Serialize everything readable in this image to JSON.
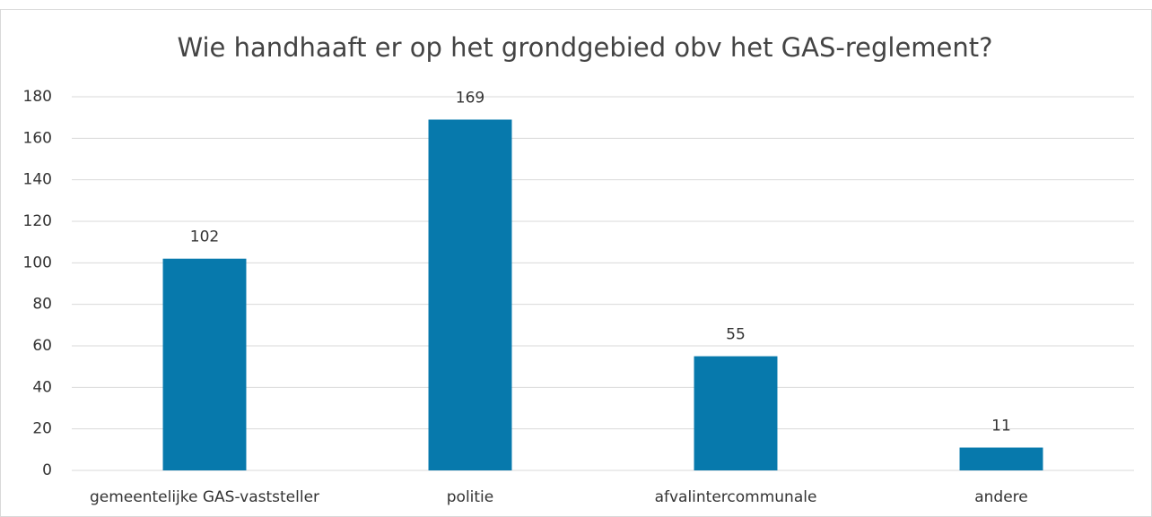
{
  "chart_data": {
    "type": "bar",
    "title": "Wie handhaaft er op het grondgebied obv het GAS-reglement?",
    "categories": [
      "gemeentelijke GAS-vaststeller",
      "politie",
      "afvalintercommunale",
      "andere"
    ],
    "values": [
      102,
      169,
      55,
      11
    ],
    "color": "#0779ac",
    "ylim": [
      0,
      180
    ],
    "yticks": [
      0,
      20,
      40,
      60,
      80,
      100,
      120,
      140,
      160,
      180
    ],
    "grid": true
  }
}
